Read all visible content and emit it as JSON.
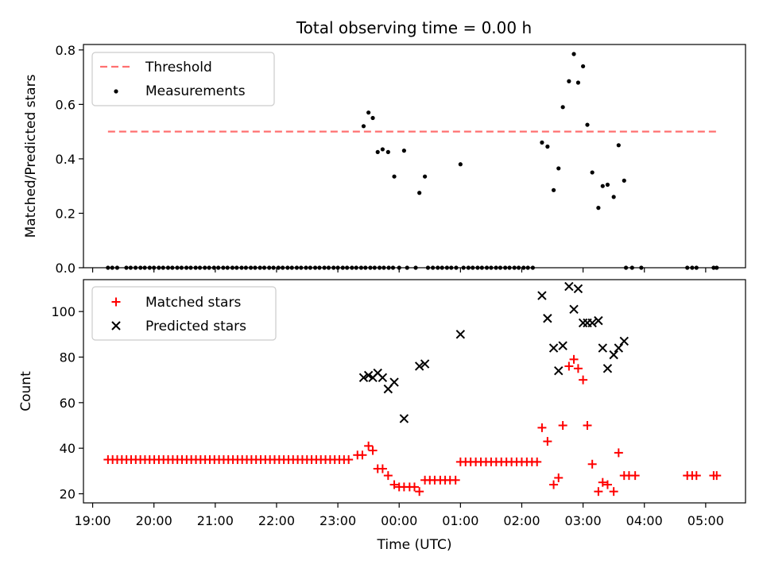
{
  "title": "Total observing time = 0.00 h",
  "chart_data": [
    {
      "type": "scatter",
      "ylabel": "Matched/Predicted stars",
      "ylim": [
        0,
        0.82
      ],
      "yticks": [
        "0.0",
        "0.2",
        "0.4",
        "0.6",
        "0.8"
      ],
      "ytick_values": [
        0,
        0.2,
        0.4,
        0.6,
        0.8
      ],
      "legend_position": "upper-left",
      "threshold": {
        "name": "Threshold",
        "value": 0.5,
        "x_range": [
          -4.75,
          5.2
        ],
        "color": "#ff7070"
      },
      "measurements": {
        "name": "Measurements",
        "color": "#000000",
        "zero_x": [
          -4.75,
          -4.68,
          -4.6,
          -4.45,
          -4.38,
          -4.3,
          -4.22,
          -4.15,
          -4.07,
          -4.0,
          -3.92,
          -3.85,
          -3.77,
          -3.7,
          -3.62,
          -3.55,
          -3.47,
          -3.4,
          -3.32,
          -3.25,
          -3.17,
          -3.1,
          -3.02,
          -2.95,
          -2.87,
          -2.8,
          -2.72,
          -2.65,
          -2.57,
          -2.5,
          -2.42,
          -2.35,
          -2.27,
          -2.2,
          -2.12,
          -2.05,
          -1.97,
          -1.9,
          -1.82,
          -1.75,
          -1.67,
          -1.6,
          -1.52,
          -1.45,
          -1.37,
          -1.3,
          -1.22,
          -1.15,
          -1.07,
          -1.0,
          -0.92,
          -0.85,
          -0.77,
          -0.7,
          -0.62,
          -0.55,
          -0.47,
          -0.4,
          -0.32,
          -0.25,
          -0.17,
          -0.1,
          0.0,
          0.13,
          0.27,
          0.47,
          0.55,
          0.63,
          0.7,
          0.78,
          0.85,
          0.93,
          1.05,
          1.13,
          1.2,
          1.28,
          1.35,
          1.43,
          1.5,
          1.58,
          1.65,
          1.73,
          1.8,
          1.88,
          1.95,
          2.03,
          2.1,
          2.18,
          3.7,
          3.8,
          3.95,
          4.7,
          4.78,
          4.85,
          5.13,
          5.18
        ],
        "points": [
          [
            -0.58,
            0.52
          ],
          [
            -0.5,
            0.57
          ],
          [
            -0.43,
            0.55
          ],
          [
            -0.35,
            0.425
          ],
          [
            -0.27,
            0.435
          ],
          [
            -0.18,
            0.425
          ],
          [
            -0.08,
            0.335
          ],
          [
            0.08,
            0.43
          ],
          [
            0.33,
            0.275
          ],
          [
            0.42,
            0.335
          ],
          [
            1.0,
            0.38
          ],
          [
            2.33,
            0.46
          ],
          [
            2.42,
            0.445
          ],
          [
            2.52,
            0.285
          ],
          [
            2.6,
            0.365
          ],
          [
            2.67,
            0.59
          ],
          [
            2.77,
            0.685
          ],
          [
            2.85,
            0.785
          ],
          [
            2.92,
            0.68
          ],
          [
            3.0,
            0.74
          ],
          [
            3.07,
            0.525
          ],
          [
            3.15,
            0.35
          ],
          [
            3.25,
            0.22
          ],
          [
            3.32,
            0.3
          ],
          [
            3.4,
            0.305
          ],
          [
            3.5,
            0.26
          ],
          [
            3.58,
            0.45
          ],
          [
            3.67,
            0.32
          ]
        ]
      }
    },
    {
      "type": "scatter",
      "xlabel": "Time (UTC)",
      "ylabel": "Count",
      "xlim": [
        -5.15,
        5.65
      ],
      "ylim": [
        16,
        114
      ],
      "xticks": [
        "19:00",
        "20:00",
        "21:00",
        "22:00",
        "23:00",
        "00:00",
        "01:00",
        "02:00",
        "03:00",
        "04:00",
        "05:00"
      ],
      "xtick_values": [
        -5,
        -4,
        -3,
        -2,
        -1,
        0,
        1,
        2,
        3,
        4,
        5
      ],
      "yticks": [
        "20",
        "40",
        "60",
        "80",
        "100"
      ],
      "ytick_values": [
        20,
        40,
        60,
        80,
        100
      ],
      "legend_position": "upper-left",
      "series": [
        {
          "name": "Matched stars",
          "marker": "plus",
          "color": "#ff0000",
          "flat": {
            "x_from": -4.75,
            "x_to": -0.75,
            "x_step": 0.0755,
            "y": 35
          },
          "flat2": {
            "x_from": 1.0,
            "x_to": 2.25,
            "x_step": 0.0833,
            "y": 34
          },
          "points": [
            [
              -0.68,
              37
            ],
            [
              -0.6,
              37
            ],
            [
              -0.5,
              41
            ],
            [
              -0.43,
              39
            ],
            [
              -0.35,
              31
            ],
            [
              -0.27,
              31
            ],
            [
              -0.18,
              28
            ],
            [
              -0.08,
              24
            ],
            [
              0.0,
              23
            ],
            [
              0.08,
              23
            ],
            [
              0.17,
              23
            ],
            [
              0.25,
              23
            ],
            [
              0.33,
              21
            ],
            [
              0.42,
              26
            ],
            [
              0.5,
              26
            ],
            [
              0.58,
              26
            ],
            [
              0.67,
              26
            ],
            [
              0.75,
              26
            ],
            [
              0.83,
              26
            ],
            [
              0.92,
              26
            ],
            [
              2.33,
              49
            ],
            [
              2.42,
              43
            ],
            [
              2.52,
              24
            ],
            [
              2.6,
              27
            ],
            [
              2.67,
              50
            ],
            [
              2.77,
              76
            ],
            [
              2.85,
              79
            ],
            [
              2.92,
              75
            ],
            [
              3.0,
              70
            ],
            [
              3.07,
              50
            ],
            [
              3.15,
              33
            ],
            [
              3.25,
              21
            ],
            [
              3.32,
              25
            ],
            [
              3.4,
              24
            ],
            [
              3.5,
              21
            ],
            [
              3.58,
              38
            ],
            [
              3.67,
              28
            ],
            [
              3.75,
              28
            ],
            [
              3.85,
              28
            ],
            [
              4.7,
              28
            ],
            [
              4.78,
              28
            ],
            [
              4.85,
              28
            ],
            [
              5.13,
              28
            ],
            [
              5.18,
              28
            ]
          ]
        },
        {
          "name": "Predicted stars",
          "marker": "x",
          "color": "#000000",
          "points": [
            [
              -0.58,
              71
            ],
            [
              -0.5,
              72
            ],
            [
              -0.43,
              71
            ],
            [
              -0.35,
              73
            ],
            [
              -0.27,
              71
            ],
            [
              -0.18,
              66
            ],
            [
              -0.08,
              69
            ],
            [
              0.08,
              53
            ],
            [
              0.33,
              76
            ],
            [
              0.42,
              77
            ],
            [
              1.0,
              90
            ],
            [
              2.33,
              107
            ],
            [
              2.42,
              97
            ],
            [
              2.52,
              84
            ],
            [
              2.6,
              74
            ],
            [
              2.67,
              85
            ],
            [
              2.77,
              111
            ],
            [
              2.85,
              101
            ],
            [
              2.92,
              110
            ],
            [
              3.0,
              95
            ],
            [
              3.07,
              95
            ],
            [
              3.15,
              95
            ],
            [
              3.25,
              96
            ],
            [
              3.32,
              84
            ],
            [
              3.4,
              75
            ],
            [
              3.5,
              81
            ],
            [
              3.58,
              84
            ],
            [
              3.67,
              87
            ]
          ]
        }
      ]
    }
  ]
}
